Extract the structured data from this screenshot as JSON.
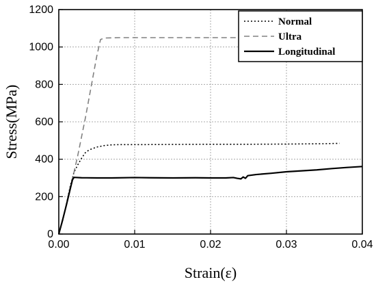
{
  "chart_data": {
    "type": "line",
    "title": "",
    "xlabel": "Strain(ε)",
    "ylabel": "Stress(MPa)",
    "xlim": [
      0,
      0.04
    ],
    "ylim": [
      0,
      1200
    ],
    "xticks": [
      0.0,
      0.01,
      0.02,
      0.03,
      0.04
    ],
    "xtick_labels": [
      "0.00",
      "0.01",
      "0.02",
      "0.03",
      "0.04"
    ],
    "yticks": [
      0,
      200,
      400,
      600,
      800,
      1000,
      1200
    ],
    "ytick_labels": [
      "0",
      "200",
      "400",
      "600",
      "800",
      "1000",
      "1200"
    ],
    "grid": true,
    "legend_position": "top-right",
    "series": [
      {
        "name": "Normal",
        "style": "dotted",
        "color": "#000000",
        "points": [
          [
            0,
            0
          ],
          [
            0.0005,
            70
          ],
          [
            0.001,
            160
          ],
          [
            0.0015,
            255
          ],
          [
            0.002,
            330
          ],
          [
            0.0025,
            370
          ],
          [
            0.003,
            405
          ],
          [
            0.0035,
            435
          ],
          [
            0.004,
            450
          ],
          [
            0.005,
            465
          ],
          [
            0.006,
            473
          ],
          [
            0.007,
            477
          ],
          [
            0.008,
            478
          ],
          [
            0.01,
            478
          ],
          [
            0.015,
            479
          ],
          [
            0.02,
            480
          ],
          [
            0.025,
            480
          ],
          [
            0.03,
            481
          ],
          [
            0.035,
            483
          ],
          [
            0.037,
            485
          ]
        ]
      },
      {
        "name": "Ultra",
        "style": "dashed",
        "color": "#808080",
        "points": [
          [
            0,
            0
          ],
          [
            0.0005,
            70
          ],
          [
            0.001,
            160
          ],
          [
            0.0015,
            250
          ],
          [
            0.002,
            330
          ],
          [
            0.0025,
            420
          ],
          [
            0.003,
            520
          ],
          [
            0.0035,
            620
          ],
          [
            0.004,
            730
          ],
          [
            0.0045,
            840
          ],
          [
            0.005,
            950
          ],
          [
            0.0055,
            1040
          ],
          [
            0.006,
            1048
          ],
          [
            0.008,
            1050
          ],
          [
            0.01,
            1050
          ],
          [
            0.02,
            1050
          ],
          [
            0.03,
            1050
          ],
          [
            0.04,
            1050
          ]
        ]
      },
      {
        "name": "Longitudinal",
        "style": "solid",
        "color": "#000000",
        "points": [
          [
            0,
            0
          ],
          [
            0.0005,
            75
          ],
          [
            0.001,
            155
          ],
          [
            0.0015,
            240
          ],
          [
            0.0018,
            290
          ],
          [
            0.002,
            303
          ],
          [
            0.003,
            301
          ],
          [
            0.005,
            300
          ],
          [
            0.007,
            300
          ],
          [
            0.01,
            302
          ],
          [
            0.012,
            301
          ],
          [
            0.015,
            300
          ],
          [
            0.018,
            301
          ],
          [
            0.02,
            300
          ],
          [
            0.022,
            300
          ],
          [
            0.023,
            302
          ],
          [
            0.0235,
            298
          ],
          [
            0.024,
            295
          ],
          [
            0.0243,
            305
          ],
          [
            0.0246,
            298
          ],
          [
            0.0249,
            312
          ],
          [
            0.026,
            318
          ],
          [
            0.028,
            325
          ],
          [
            0.03,
            333
          ],
          [
            0.032,
            338
          ],
          [
            0.034,
            343
          ],
          [
            0.036,
            350
          ],
          [
            0.038,
            356
          ],
          [
            0.04,
            361
          ]
        ]
      }
    ]
  }
}
